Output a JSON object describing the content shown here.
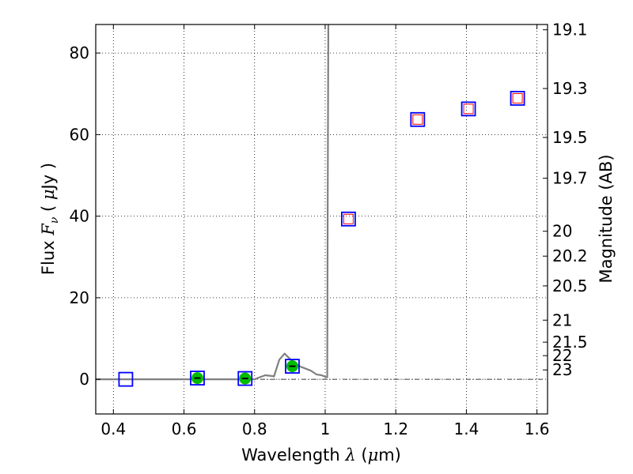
{
  "chart_data": {
    "type": "scatter",
    "xlabel": {
      "prefix": "Wavelength  ",
      "symbol": "λ",
      "unit_open": " (",
      "unit_mu": "μ",
      "unit_rest": "m)"
    },
    "ylabel": {
      "prefix": "Flux  ",
      "symbol": "F",
      "sub": "ν",
      "unit_open": "  (  ",
      "unit_mu": "μ",
      "unit_rest": "Jy )"
    },
    "ylabel_right": "Magnitude (AB)",
    "xlim": [
      0.35,
      1.63
    ],
    "ylim": [
      -8.5,
      87
    ],
    "grid": true,
    "x_ticks": [
      0.4,
      0.6,
      0.8,
      1.0,
      1.2,
      1.4,
      1.6
    ],
    "x_tick_labels": [
      "0.4",
      "0.6",
      "0.8",
      "1",
      "1.2",
      "1.4",
      "1.6"
    ],
    "y_ticks": [
      0,
      20,
      40,
      60,
      80
    ],
    "y_tick_labels": [
      "0",
      "20",
      "40",
      "60",
      "80"
    ],
    "right_ticks": [
      {
        "label": "19.1",
        "flux": 85.7
      },
      {
        "label": "19.3",
        "flux": 71.3
      },
      {
        "label": "19.5",
        "flux": 59.3
      },
      {
        "label": "19.7",
        "flux": 49.3
      },
      {
        "label": "20",
        "flux": 36.3
      },
      {
        "label": "20.2",
        "flux": 30.2
      },
      {
        "label": "20.5",
        "flux": 22.9
      },
      {
        "label": "21",
        "flux": 14.5
      },
      {
        "label": "21.5",
        "flux": 9.1
      },
      {
        "label": "22",
        "flux": 5.8
      },
      {
        "label": "23",
        "flux": 2.3
      }
    ],
    "model_sed": {
      "color": "#808080",
      "x": [
        0.35,
        0.6,
        0.8,
        0.815,
        0.83,
        0.85,
        0.855,
        0.87,
        0.885,
        0.9,
        0.915,
        0.93,
        0.945,
        0.96,
        0.975,
        0.99,
        1.003,
        1.006,
        1.007,
        1.009
      ],
      "y": [
        0.0,
        0.0,
        0.0,
        0.5,
        1.0,
        0.8,
        0.7,
        4.8,
        6.3,
        5.0,
        3.9,
        3.1,
        2.6,
        2.1,
        1.2,
        1.0,
        0.5,
        0.5,
        40,
        90
      ]
    },
    "zero_line": {
      "y": 0,
      "style": "dash-dot"
    },
    "observed": {
      "marker": "square",
      "color": "#0000ff",
      "points": [
        {
          "x": 0.435,
          "y": 0.0
        },
        {
          "x": 0.638,
          "y": 0.3
        },
        {
          "x": 0.773,
          "y": 0.2
        },
        {
          "x": 0.907,
          "y": 3.2
        },
        {
          "x": 1.066,
          "y": 39.3
        },
        {
          "x": 1.262,
          "y": 63.7
        },
        {
          "x": 1.406,
          "y": 66.3
        },
        {
          "x": 1.545,
          "y": 68.9
        }
      ]
    },
    "model_phot": {
      "marker": "square",
      "color": "#ff0000",
      "points": [
        {
          "x": 1.066,
          "y": 39.3
        },
        {
          "x": 1.262,
          "y": 63.7
        },
        {
          "x": 1.406,
          "y": 66.3
        },
        {
          "x": 1.545,
          "y": 68.9
        }
      ]
    },
    "detections": {
      "marker": "circle",
      "color": "#00bb00",
      "points": [
        {
          "x": 0.638,
          "y": 0.3
        },
        {
          "x": 0.773,
          "y": 0.2
        },
        {
          "x": 0.907,
          "y": 3.2
        }
      ]
    }
  }
}
